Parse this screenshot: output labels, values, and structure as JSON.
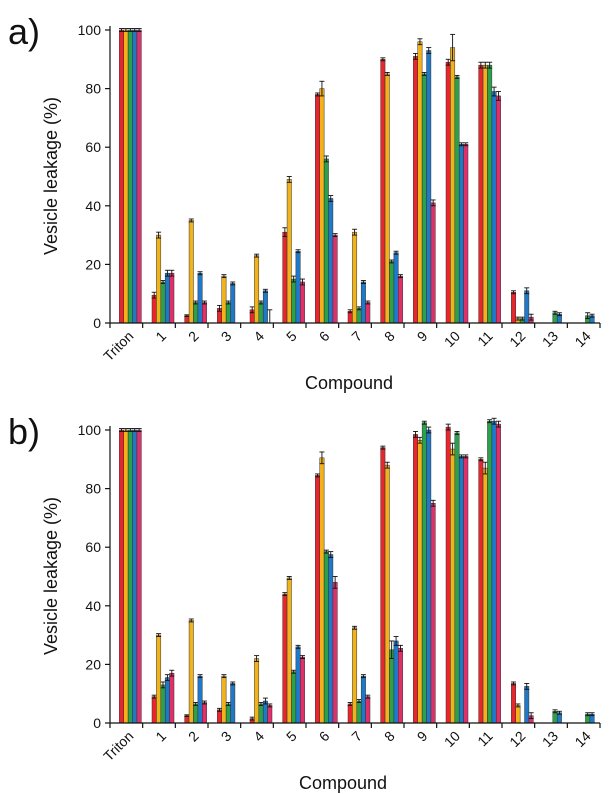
{
  "colors": [
    "#e8262c",
    "#f2b21c",
    "#2ca14c",
    "#1f78c8",
    "#e0306a"
  ],
  "chart_data": [
    {
      "type": "bar",
      "panel_label": "a)",
      "xlabel": "Compound",
      "ylabel": "Vesicle leakage (%)",
      "ylim": [
        0,
        100
      ],
      "yticks": [
        0,
        20,
        40,
        60,
        80,
        100
      ],
      "categories": [
        "Triton",
        "1",
        "2",
        "3",
        "4",
        "5",
        "6",
        "7",
        "8",
        "9",
        "10",
        "11",
        "12",
        "13",
        "14"
      ],
      "series": [
        {
          "values": [
            100,
            9.5,
            2.5,
            5,
            4.5,
            31,
            78,
            4,
            90,
            91,
            89,
            88,
            10.5,
            0,
            0
          ],
          "errors": [
            0.5,
            1,
            0.3,
            1,
            1,
            1.5,
            0.5,
            0.5,
            0.5,
            1,
            1,
            1,
            0.5,
            0,
            0
          ]
        },
        {
          "values": [
            100,
            30,
            35,
            16,
            23,
            49,
            80,
            31,
            85,
            96,
            94,
            88,
            1.5,
            0,
            0
          ],
          "errors": [
            0.5,
            1,
            0.5,
            0.5,
            0.5,
            1,
            2.5,
            1,
            0.5,
            1,
            4.5,
            1,
            0.5,
            0,
            0
          ]
        },
        {
          "values": [
            100,
            14,
            7,
            7,
            7,
            15,
            56,
            5,
            21,
            85,
            84,
            88,
            1.5,
            3.5,
            2.5
          ],
          "errors": [
            0.5,
            0.5,
            0.5,
            0.5,
            0.5,
            1,
            1,
            0.5,
            0.5,
            0.5,
            0.5,
            1,
            0.5,
            0.5,
            1
          ]
        },
        {
          "values": [
            100,
            17,
            17,
            13.5,
            11,
            24.5,
            42.5,
            14,
            24,
            93,
            61,
            79,
            11,
            3,
            2.5
          ],
          "errors": [
            0.5,
            1,
            0.5,
            0.5,
            0.5,
            0.5,
            1,
            0.5,
            0.5,
            1,
            0.5,
            1.5,
            1,
            0.5,
            0.5
          ]
        },
        {
          "values": [
            100,
            17,
            7,
            0,
            0,
            14,
            30,
            7,
            16,
            41,
            61,
            77.5,
            2,
            0,
            0
          ],
          "errors": [
            0.5,
            1,
            0.5,
            0,
            4.5,
            1,
            0.5,
            0.5,
            0.5,
            1,
            0.5,
            1.5,
            1,
            0,
            0
          ]
        }
      ]
    },
    {
      "type": "bar",
      "panel_label": "b)",
      "xlabel": "Compound",
      "ylabel": "Vesicle leakage (%)",
      "ylim": [
        0,
        100
      ],
      "yticks": [
        0,
        20,
        40,
        60,
        80,
        100
      ],
      "categories": [
        "Triton",
        "1",
        "2",
        "3",
        "4",
        "5",
        "6",
        "7",
        "8",
        "9",
        "10",
        "11",
        "12",
        "13",
        "14"
      ],
      "series": [
        {
          "values": [
            100,
            9,
            2.5,
            4.5,
            1.5,
            44,
            84.5,
            6.5,
            94,
            98.5,
            101,
            90,
            13.5,
            0,
            0
          ],
          "errors": [
            0.5,
            0.5,
            0.3,
            0.5,
            0.5,
            0.5,
            0.5,
            0.5,
            0.5,
            1,
            1,
            0.5,
            0.5,
            0,
            0
          ]
        },
        {
          "values": [
            100,
            30,
            35,
            16,
            22,
            49.5,
            90.5,
            32.5,
            88,
            96.5,
            93.5,
            87,
            6,
            0,
            0
          ],
          "errors": [
            0.5,
            0.5,
            0.5,
            0.5,
            1,
            0.5,
            2,
            0.5,
            1,
            1,
            2,
            2,
            0.5,
            0,
            0
          ]
        },
        {
          "values": [
            100,
            13,
            6.5,
            6.5,
            6.5,
            17.5,
            58.5,
            7.5,
            25,
            102.5,
            99,
            103,
            0,
            4,
            3
          ],
          "errors": [
            0.5,
            1,
            0.5,
            0.5,
            0.5,
            0.5,
            0.5,
            0.5,
            3,
            0.5,
            0.5,
            0.5,
            0,
            0.5,
            0.5
          ]
        },
        {
          "values": [
            100,
            15.5,
            16,
            13.5,
            7.5,
            26,
            57.5,
            16,
            28,
            100,
            91,
            103,
            12.5,
            3.5,
            3
          ],
          "errors": [
            0.5,
            1,
            0.5,
            0.5,
            1,
            0.5,
            1,
            0.5,
            1.5,
            1,
            0.5,
            1,
            1,
            0.5,
            0.5
          ]
        },
        {
          "values": [
            100,
            17,
            7,
            0,
            6,
            22.5,
            48,
            9,
            25.5,
            75,
            91,
            102,
            2.5,
            0,
            0
          ],
          "errors": [
            0.5,
            1,
            0.5,
            0,
            0.5,
            0.5,
            2,
            0.5,
            1,
            1,
            0.5,
            1,
            1,
            0,
            0
          ]
        }
      ]
    }
  ]
}
